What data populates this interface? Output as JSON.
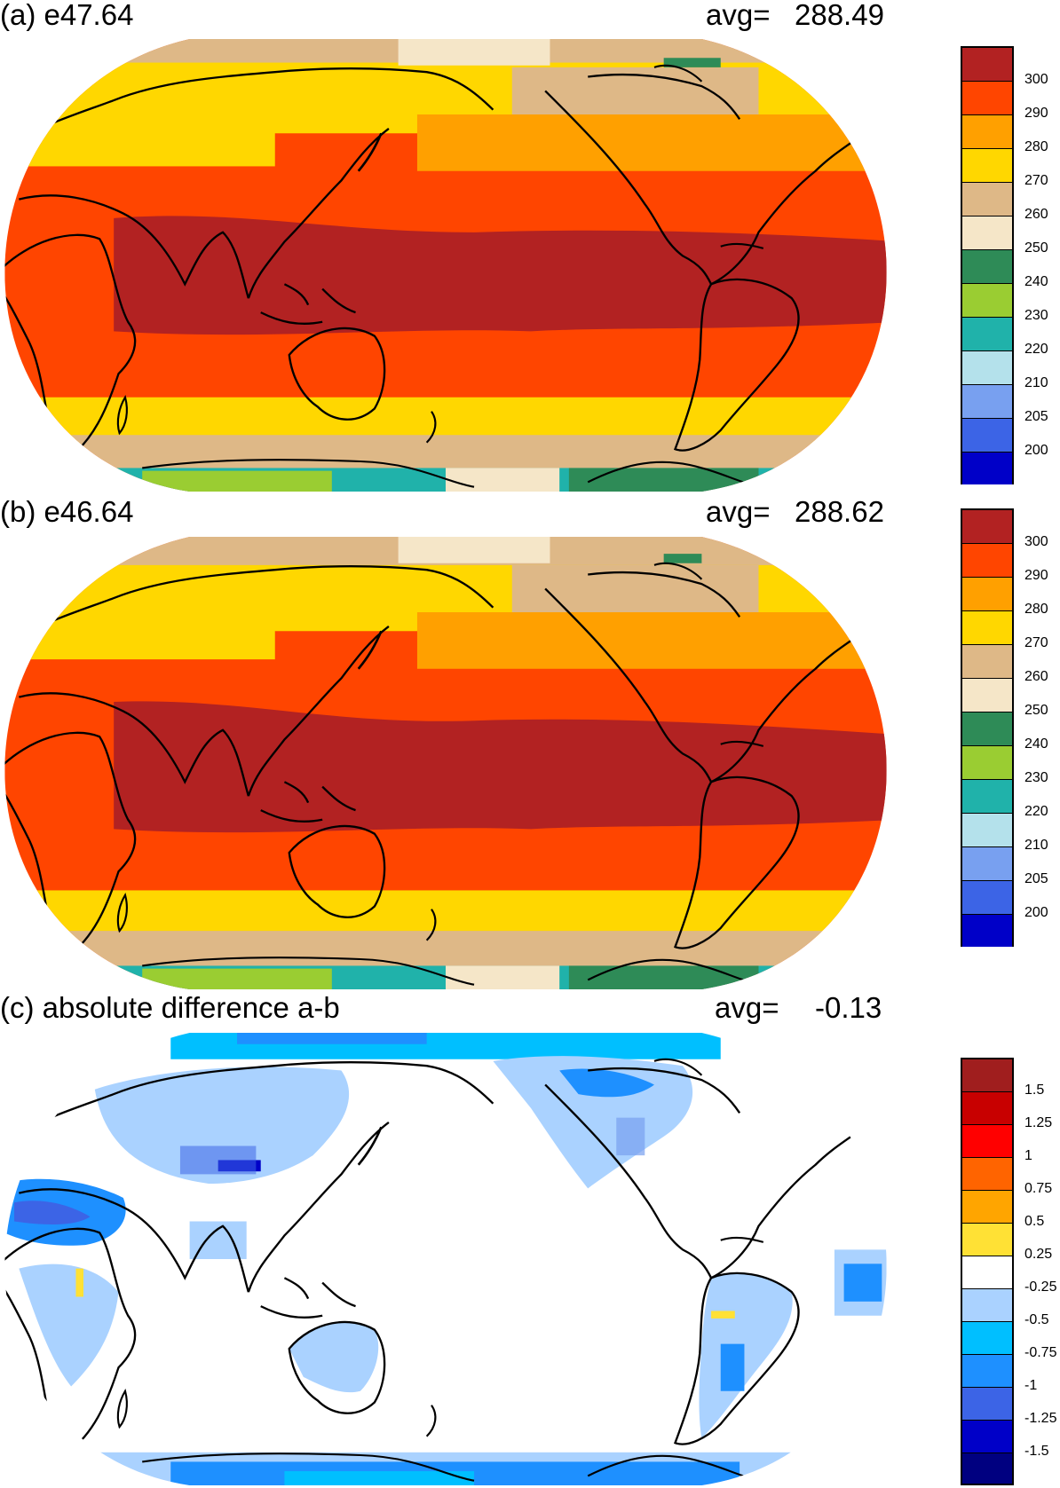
{
  "panels": [
    {
      "title": "(a) e47.64",
      "avg_label": "avg=",
      "avg_value": "288.49",
      "colorbar": {
        "colors": [
          "#0000c8",
          "#3c64e6",
          "#78a0f0",
          "#b4e1eb",
          "#20b2aa",
          "#9acd32",
          "#2e8b57",
          "#f5e6c8",
          "#deb887",
          "#ffd700",
          "#ffa000",
          "#ff4500",
          "#b22222"
        ],
        "labels": [
          "200",
          "205",
          "210",
          "220",
          "230",
          "240",
          "250",
          "260",
          "270",
          "280",
          "290",
          "300"
        ]
      }
    },
    {
      "title": "(b) e46.64",
      "avg_label": "avg=",
      "avg_value": "288.62",
      "colorbar": {
        "colors": [
          "#0000c8",
          "#3c64e6",
          "#78a0f0",
          "#b4e1eb",
          "#20b2aa",
          "#9acd32",
          "#2e8b57",
          "#f5e6c8",
          "#deb887",
          "#ffd700",
          "#ffa000",
          "#ff4500",
          "#b22222"
        ],
        "labels": [
          "200",
          "205",
          "210",
          "220",
          "230",
          "240",
          "250",
          "260",
          "270",
          "280",
          "290",
          "300"
        ]
      }
    },
    {
      "title": "(c) absolute difference a-b",
      "avg_label": "avg=",
      "avg_value": "-0.13",
      "colorbar": {
        "colors": [
          "#000080",
          "#0000c8",
          "#3c64e6",
          "#1e90ff",
          "#00bfff",
          "#aad2ff",
          "#ffffff",
          "#ffe135",
          "#ffa500",
          "#ff6400",
          "#ff0000",
          "#c80000",
          "#a01e1e"
        ],
        "labels": [
          "-1.5",
          "-1.25",
          "-1",
          "-0.75",
          "-0.5",
          "-0.25",
          "0.25",
          "0.5",
          "0.75",
          "1",
          "1.25",
          "1.5"
        ]
      }
    }
  ]
}
